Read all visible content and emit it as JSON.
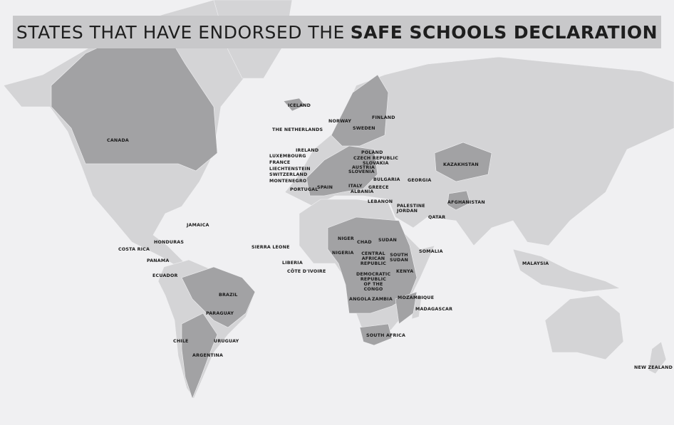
{
  "title": {
    "regular": "STATES THAT HAVE ENDORSED THE",
    "bold": "SAFE SCHOOLS DECLARATION"
  },
  "colors": {
    "background": "#f0f0f2",
    "land": "#d4d4d6",
    "endorsed": "#a2a2a4",
    "title_bar": "#c8c8ca"
  },
  "countries": [
    {
      "name": "ICELAND"
    },
    {
      "name": "NORWAY"
    },
    {
      "name": "FINLAND"
    },
    {
      "name": "THE NETHERLANDS"
    },
    {
      "name": "SWEDEN"
    },
    {
      "name": "IRELAND"
    },
    {
      "name": "POLAND"
    },
    {
      "name": "LUXEMBOURG"
    },
    {
      "name": "CZECH REPUBLIC"
    },
    {
      "name": "FRANCE"
    },
    {
      "name": "SLOVAKIA"
    },
    {
      "name": "AUSTRIA"
    },
    {
      "name": "LIECHTENSTEIN"
    },
    {
      "name": "SLOVENIA"
    },
    {
      "name": "SWITZERLAND"
    },
    {
      "name": "MONTENEGRO"
    },
    {
      "name": "BULGARIA"
    },
    {
      "name": "GEORGIA"
    },
    {
      "name": "PORTUGAL"
    },
    {
      "name": "SPAIN"
    },
    {
      "name": "ITALY"
    },
    {
      "name": "GREECE"
    },
    {
      "name": "ALBANIA"
    },
    {
      "name": "KAZAKHSTAN"
    },
    {
      "name": "CANADA"
    },
    {
      "name": "LEBANON"
    },
    {
      "name": "PALESTINE"
    },
    {
      "name": "JORDAN"
    },
    {
      "name": "QATAR"
    },
    {
      "name": "AFGHANISTAN"
    },
    {
      "name": "JAMAICA"
    },
    {
      "name": "HONDURAS"
    },
    {
      "name": "COSTA RICA"
    },
    {
      "name": "PANAMA"
    },
    {
      "name": "ECUADOR"
    },
    {
      "name": "SIERRA LEONE"
    },
    {
      "name": "LIBERIA"
    },
    {
      "name": "CÔTE D'IVOIRE"
    },
    {
      "name": "NIGER"
    },
    {
      "name": "CHAD"
    },
    {
      "name": "SUDAN"
    },
    {
      "name": "NIGERIA"
    },
    {
      "name": "CENTRAL AFRICAN REPUBLIC"
    },
    {
      "name": "SOUTH SUDAN"
    },
    {
      "name": "SOMALIA"
    },
    {
      "name": "KENYA"
    },
    {
      "name": "DEMOCRATIC REPUBLIC OF THE CONGO"
    },
    {
      "name": "ANGOLA"
    },
    {
      "name": "ZAMBIA"
    },
    {
      "name": "MOZAMBIQUE"
    },
    {
      "name": "MADAGASCAR"
    },
    {
      "name": "BRAZIL"
    },
    {
      "name": "PARAGUAY"
    },
    {
      "name": "MALAYSIA"
    },
    {
      "name": "CHILE"
    },
    {
      "name": "URUGUAY"
    },
    {
      "name": "ARGENTINA"
    },
    {
      "name": "SOUTH AFRICA"
    },
    {
      "name": "NEW ZEALAND"
    }
  ]
}
